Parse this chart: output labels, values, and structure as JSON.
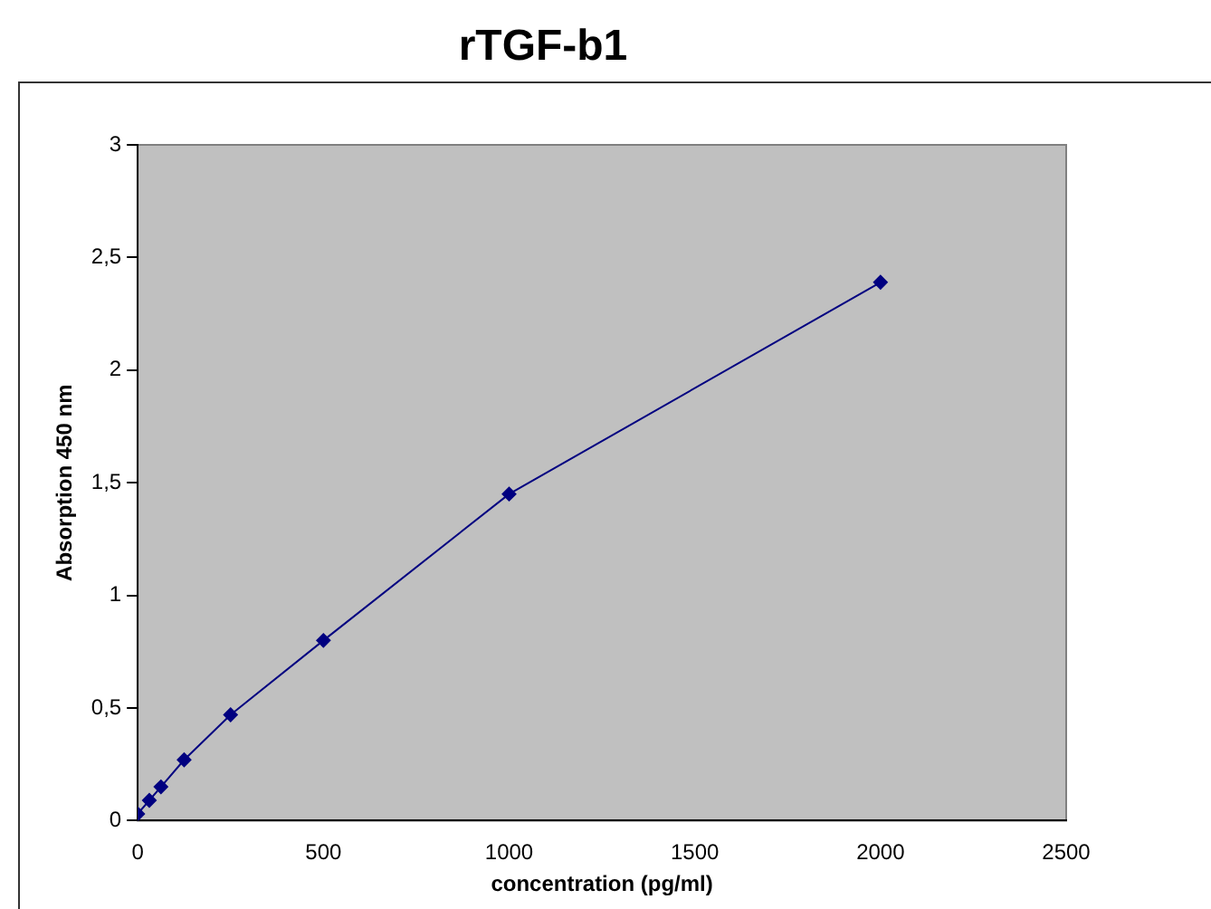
{
  "chart_data": {
    "type": "line",
    "title": "rTGF-b1",
    "xlabel": "concentration (pg/ml)",
    "ylabel": "Absorption 450 nm",
    "series": [
      {
        "color": "#000080",
        "x": [
          0,
          31.25,
          62.5,
          125,
          250,
          500,
          1000,
          2000
        ],
        "values": [
          0.03,
          0.09,
          0.15,
          0.27,
          0.47,
          0.8,
          1.45,
          2.39
        ]
      }
    ],
    "xlim": [
      0,
      2500
    ],
    "xticks": [
      0,
      500,
      1000,
      1500,
      2000,
      2500
    ],
    "ylim": [
      0,
      3
    ],
    "yticks": [
      0,
      {
        "value": 0.5,
        "label": "0,5"
      },
      1,
      {
        "value": 1.5,
        "label": "1,5"
      },
      2,
      {
        "value": 2.5,
        "label": "2,5"
      },
      3
    ],
    "grid": false,
    "legend": false,
    "marker": "diamond",
    "line_style": "solid"
  }
}
